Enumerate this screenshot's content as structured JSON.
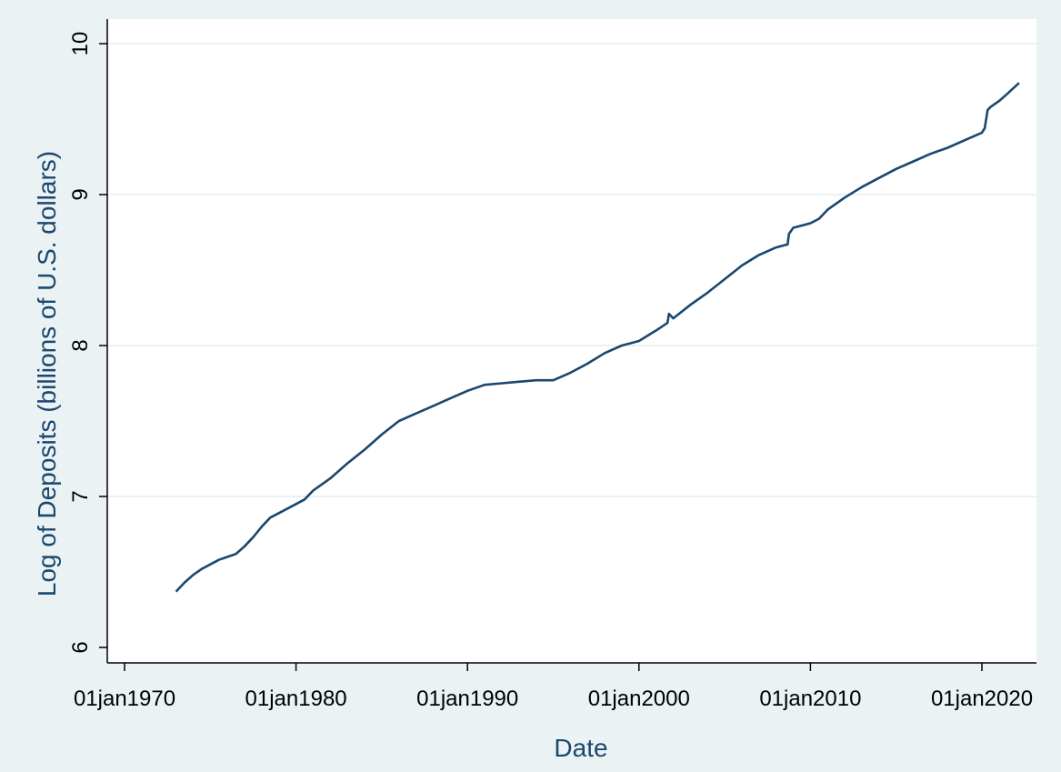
{
  "chart_data": {
    "type": "line",
    "title": "",
    "xlabel": "Date",
    "ylabel": "Log of Deposits (billions of U.S. dollars)",
    "x_ticks": [
      "01jan1970",
      "01jan1980",
      "01jan1990",
      "01jan2000",
      "01jan2010",
      "01jan2020"
    ],
    "x_tick_years": [
      1970,
      1980,
      1990,
      2000,
      2010,
      2020
    ],
    "y_ticks": [
      "6",
      "7",
      "8",
      "9",
      "10"
    ],
    "ylim": [
      6,
      10
    ],
    "xlim": [
      "1970-01-01",
      "2022-05-01"
    ],
    "grid": "horizontal",
    "legend": "none",
    "series": [
      {
        "color": "#1a476f",
        "x": [
          "1973-01",
          "1973-07",
          "1974-01",
          "1974-07",
          "1975-01",
          "1975-07",
          "1976-01",
          "1976-07",
          "1977-01",
          "1977-07",
          "1978-01",
          "1978-07",
          "1979-01",
          "1979-07",
          "1980-01",
          "1980-07",
          "1981-01",
          "1982-01",
          "1983-01",
          "1984-01",
          "1985-01",
          "1986-01",
          "1987-01",
          "1988-01",
          "1989-01",
          "1990-01",
          "1991-01",
          "1992-01",
          "1993-01",
          "1994-01",
          "1995-01",
          "1996-01",
          "1997-01",
          "1998-01",
          "1999-01",
          "2000-01",
          "2001-01",
          "2001-09",
          "2001-10",
          "2002-01",
          "2003-01",
          "2004-01",
          "2005-01",
          "2006-01",
          "2007-01",
          "2008-01",
          "2008-09",
          "2008-10",
          "2009-01",
          "2010-01",
          "2010-07",
          "2011-01",
          "2012-01",
          "2013-01",
          "2014-01",
          "2015-01",
          "2016-01",
          "2017-01",
          "2018-01",
          "2019-01",
          "2020-01",
          "2020-03",
          "2020-05",
          "2020-07",
          "2021-01",
          "2021-07",
          "2022-03"
        ],
        "y": [
          6.37,
          6.43,
          6.48,
          6.52,
          6.55,
          6.58,
          6.6,
          6.62,
          6.67,
          6.73,
          6.8,
          6.86,
          6.89,
          6.92,
          6.95,
          6.98,
          7.04,
          7.12,
          7.22,
          7.31,
          7.41,
          7.5,
          7.55,
          7.6,
          7.65,
          7.7,
          7.74,
          7.75,
          7.76,
          7.77,
          7.77,
          7.82,
          7.88,
          7.95,
          8.0,
          8.03,
          8.1,
          8.15,
          8.21,
          8.18,
          8.27,
          8.35,
          8.44,
          8.53,
          8.6,
          8.65,
          8.67,
          8.74,
          8.78,
          8.81,
          8.84,
          8.9,
          8.98,
          9.05,
          9.11,
          9.17,
          9.22,
          9.27,
          9.31,
          9.36,
          9.41,
          9.44,
          9.56,
          9.58,
          9.62,
          9.67,
          9.74
        ]
      }
    ]
  }
}
